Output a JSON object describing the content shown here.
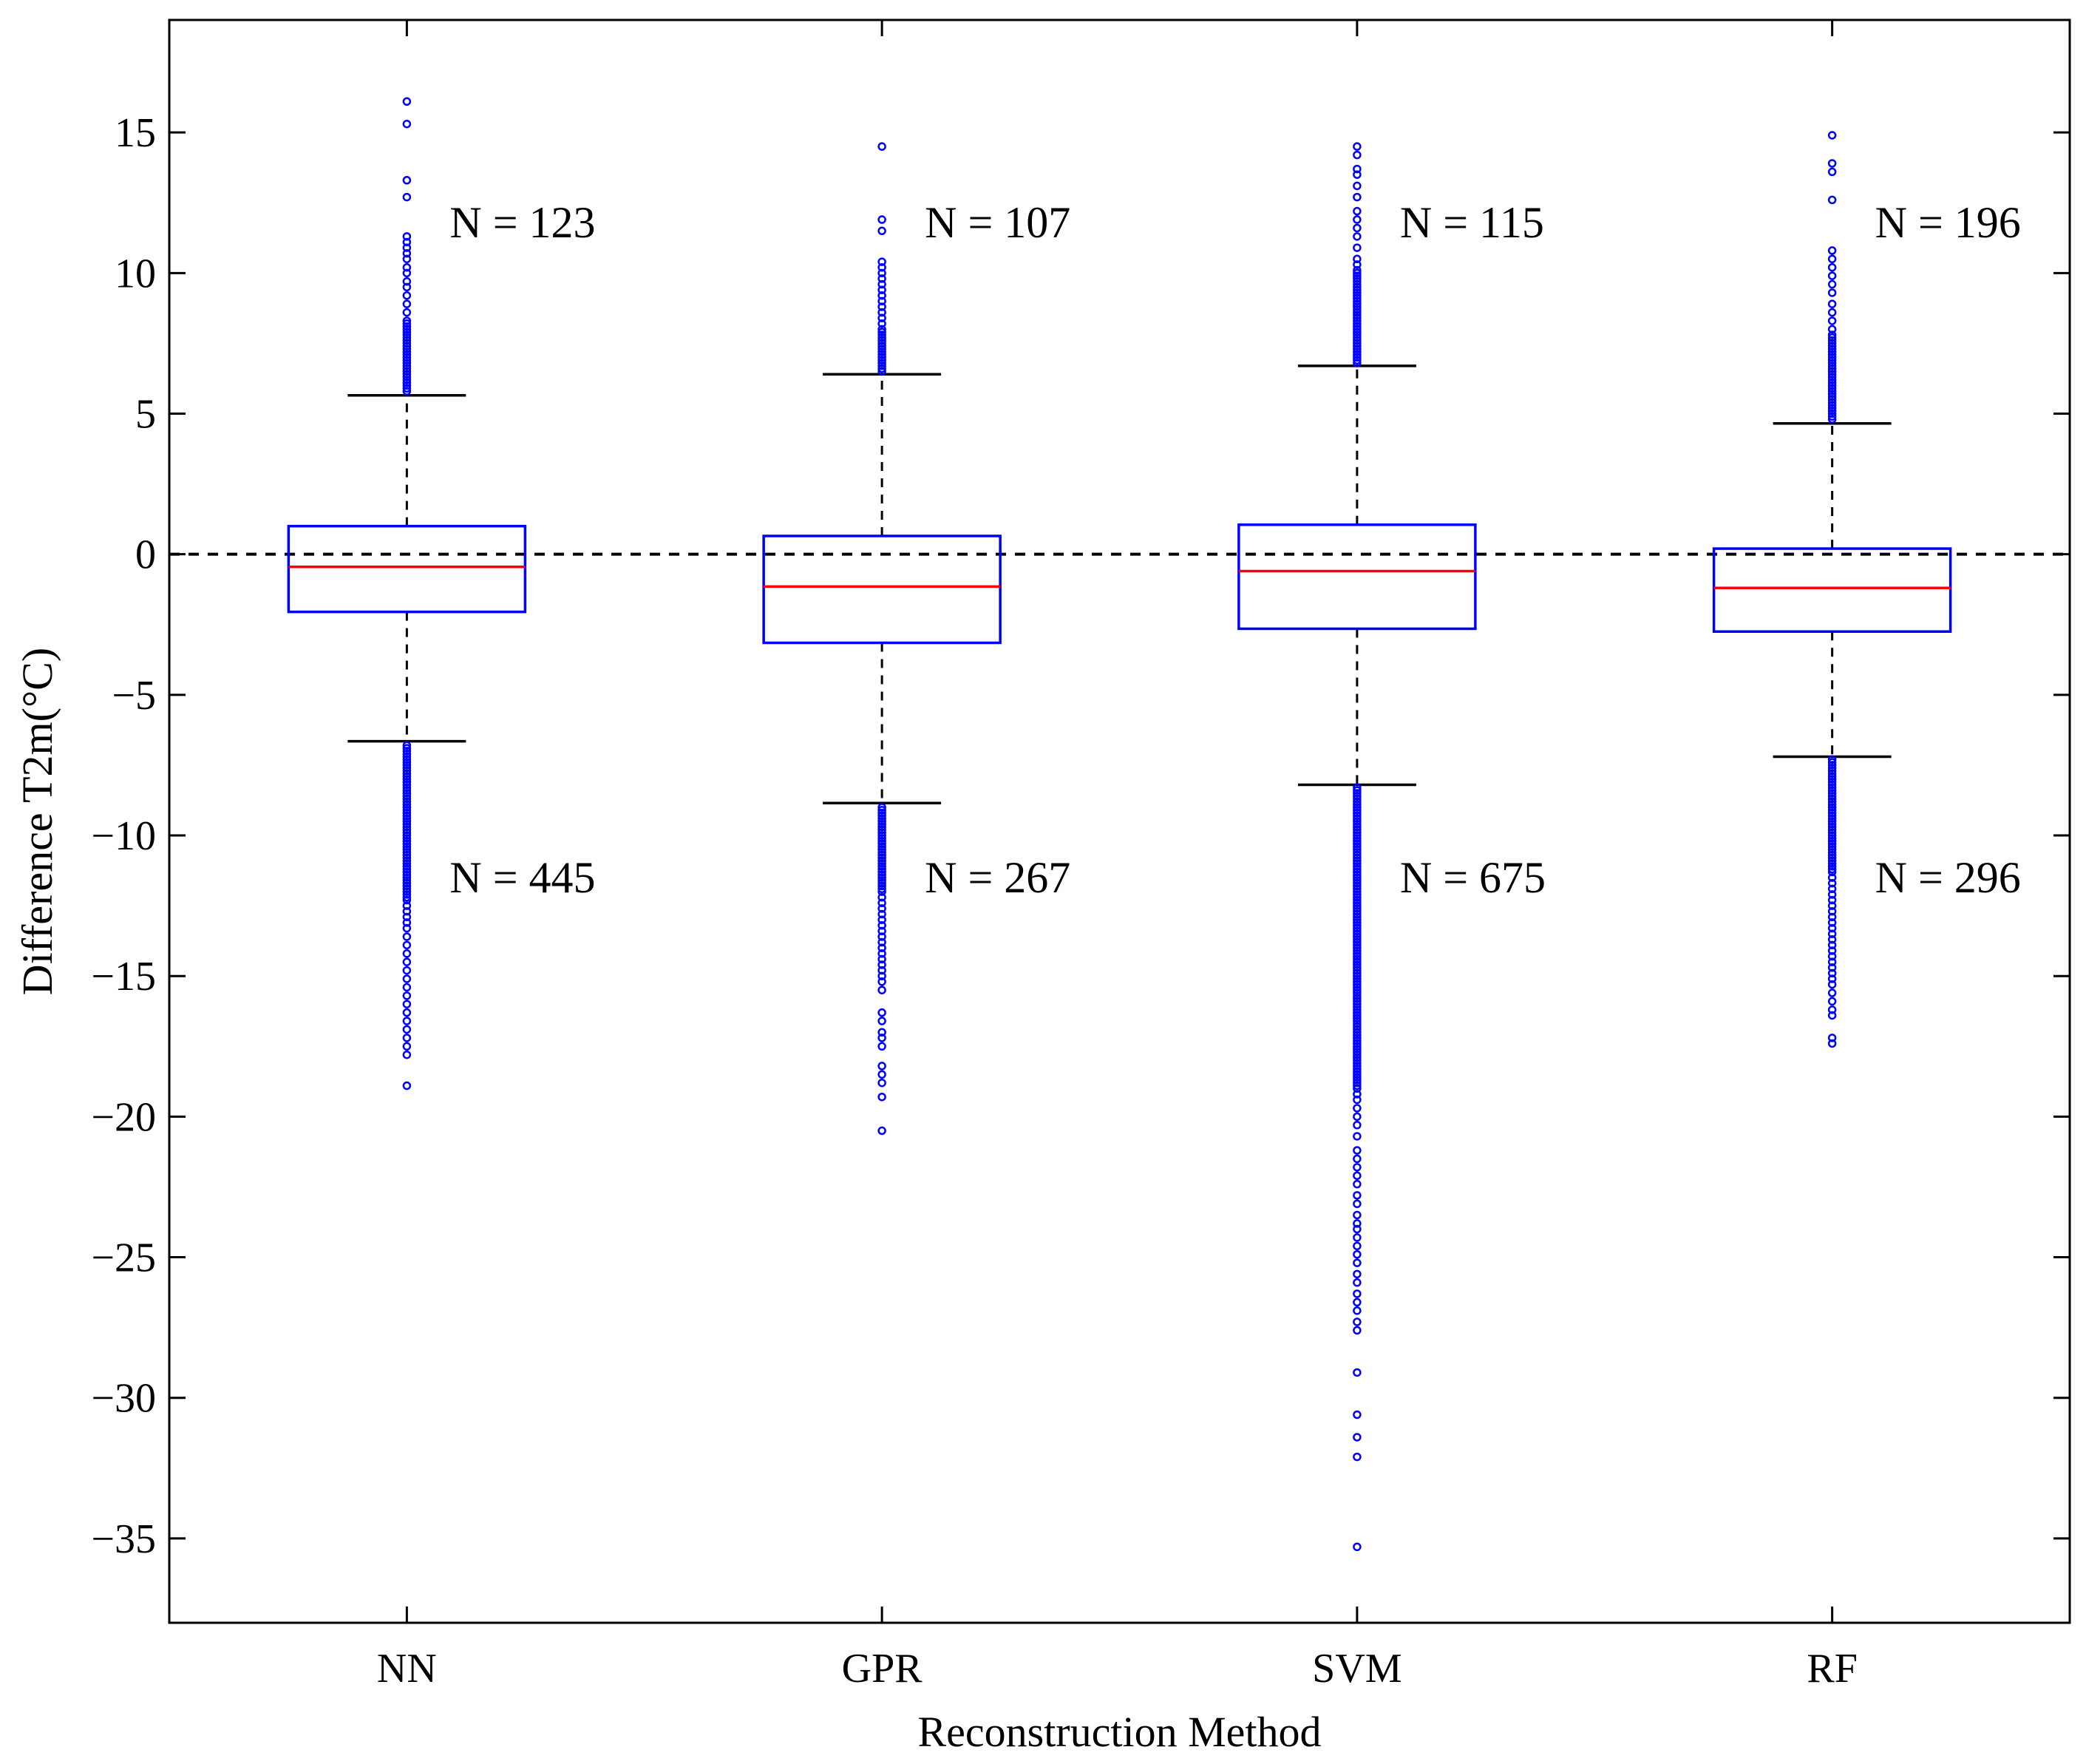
{
  "chart_data": {
    "type": "boxplot",
    "xlabel": "Reconstruction Method",
    "ylabel": "Difference T2m(°C)",
    "ylim": [
      -38,
      19
    ],
    "yticks": [
      15,
      10,
      5,
      0,
      -5,
      -10,
      -15,
      -20,
      -25,
      -30,
      -35
    ],
    "ytick_labels": [
      "15",
      "10",
      "5",
      "0",
      "−5",
      "−10",
      "−15",
      "−20",
      "−25",
      "−30",
      "−35"
    ],
    "reference_line": {
      "y": 0,
      "style": "dashed"
    },
    "colors": {
      "box": "#0000ff",
      "median": "#ff0000",
      "whisker": "#000000",
      "outlier": "#0000ff",
      "frame": "#000000"
    },
    "categories": [
      "NN",
      "GPR",
      "SVM",
      "RF"
    ],
    "boxes": [
      {
        "name": "NN",
        "q1": -2.05,
        "median": -0.45,
        "q3": 1.0,
        "whisker_low": -6.65,
        "whisker_high": 5.65,
        "outliers_high": [
          5.8,
          5.9,
          6.0,
          6.1,
          6.2,
          6.3,
          6.4,
          6.5,
          6.6,
          6.7,
          6.8,
          6.9,
          7.0,
          7.1,
          7.2,
          7.3,
          7.4,
          7.5,
          7.6,
          7.7,
          7.8,
          7.9,
          8.0,
          8.1,
          8.2,
          8.3,
          8.6,
          8.9,
          9.2,
          9.5,
          9.7,
          10.0,
          10.2,
          10.5,
          10.7,
          10.9,
          11.1,
          11.3,
          12.7,
          13.3,
          15.3,
          16.1
        ],
        "outliers_low": [
          -6.8,
          -6.9,
          -7.0,
          -7.1,
          -7.2,
          -7.3,
          -7.4,
          -7.5,
          -7.6,
          -7.7,
          -7.8,
          -7.9,
          -8.0,
          -8.1,
          -8.2,
          -8.3,
          -8.4,
          -8.5,
          -8.6,
          -8.7,
          -8.8,
          -8.9,
          -9.0,
          -9.1,
          -9.2,
          -9.3,
          -9.4,
          -9.5,
          -9.6,
          -9.7,
          -9.8,
          -9.9,
          -10.0,
          -10.1,
          -10.2,
          -10.3,
          -10.4,
          -10.5,
          -10.6,
          -10.7,
          -10.8,
          -10.9,
          -11.0,
          -11.1,
          -11.2,
          -11.3,
          -11.4,
          -11.5,
          -11.6,
          -11.7,
          -11.8,
          -11.9,
          -12.0,
          -12.1,
          -12.2,
          -12.3,
          -12.5,
          -12.7,
          -12.9,
          -13.1,
          -13.3,
          -13.6,
          -13.9,
          -14.2,
          -14.5,
          -14.8,
          -15.1,
          -15.4,
          -15.7,
          -16.0,
          -16.3,
          -16.6,
          -16.9,
          -17.2,
          -17.5,
          -17.8,
          -18.9
        ],
        "n_high": "N = 123",
        "n_low": "N = 445"
      },
      {
        "name": "GPR",
        "q1": -3.15,
        "median": -1.15,
        "q3": 0.65,
        "whisker_low": -8.85,
        "whisker_high": 6.4,
        "outliers_high": [
          6.5,
          6.6,
          6.7,
          6.8,
          6.9,
          7.0,
          7.1,
          7.2,
          7.3,
          7.4,
          7.5,
          7.6,
          7.7,
          7.8,
          7.9,
          8.0,
          8.2,
          8.4,
          8.6,
          8.8,
          9.0,
          9.2,
          9.4,
          9.6,
          9.8,
          10.0,
          10.2,
          10.4,
          11.5,
          11.9,
          14.5
        ],
        "outliers_low": [
          -9.0,
          -9.1,
          -9.2,
          -9.3,
          -9.4,
          -9.5,
          -9.6,
          -9.7,
          -9.8,
          -9.9,
          -10.0,
          -10.1,
          -10.2,
          -10.3,
          -10.4,
          -10.5,
          -10.6,
          -10.7,
          -10.8,
          -10.9,
          -11.0,
          -11.1,
          -11.2,
          -11.3,
          -11.4,
          -11.5,
          -11.6,
          -11.7,
          -11.8,
          -11.9,
          -12.0,
          -12.2,
          -12.4,
          -12.6,
          -12.8,
          -13.0,
          -13.2,
          -13.4,
          -13.6,
          -13.8,
          -14.0,
          -14.2,
          -14.4,
          -14.6,
          -14.8,
          -15.0,
          -15.2,
          -15.5,
          -16.3,
          -16.6,
          -17.0,
          -17.2,
          -17.5,
          -18.2,
          -18.5,
          -18.8,
          -19.3,
          -20.5
        ],
        "n_high": "N = 107",
        "n_low": "N = 267"
      },
      {
        "name": "SVM",
        "q1": -2.65,
        "median": -0.6,
        "q3": 1.05,
        "whisker_low": -8.2,
        "whisker_high": 6.7,
        "outliers_high": [
          6.8,
          6.9,
          7.0,
          7.1,
          7.2,
          7.3,
          7.4,
          7.5,
          7.6,
          7.7,
          7.8,
          7.9,
          8.0,
          8.1,
          8.2,
          8.3,
          8.4,
          8.5,
          8.6,
          8.7,
          8.8,
          8.9,
          9.0,
          9.1,
          9.2,
          9.3,
          9.4,
          9.5,
          9.6,
          9.7,
          9.8,
          9.9,
          10.0,
          10.1,
          10.3,
          10.5,
          10.9,
          11.3,
          11.6,
          11.9,
          12.2,
          12.7,
          13.1,
          13.5,
          13.7,
          14.2,
          14.5
        ],
        "outliers_low": [
          -8.3,
          -8.4,
          -8.5,
          -8.6,
          -8.7,
          -8.8,
          -8.9,
          -9.0,
          -9.1,
          -9.2,
          -9.3,
          -9.4,
          -9.5,
          -9.6,
          -9.7,
          -9.8,
          -9.9,
          -10.0,
          -10.1,
          -10.2,
          -10.3,
          -10.4,
          -10.5,
          -10.6,
          -10.7,
          -10.8,
          -10.9,
          -11.0,
          -11.1,
          -11.2,
          -11.3,
          -11.4,
          -11.5,
          -11.6,
          -11.7,
          -11.8,
          -11.9,
          -12.0,
          -12.1,
          -12.2,
          -12.3,
          -12.4,
          -12.5,
          -12.6,
          -12.7,
          -12.8,
          -12.9,
          -13.0,
          -13.1,
          -13.2,
          -13.3,
          -13.4,
          -13.5,
          -13.6,
          -13.7,
          -13.8,
          -13.9,
          -14.0,
          -14.1,
          -14.2,
          -14.3,
          -14.4,
          -14.5,
          -14.6,
          -14.7,
          -14.8,
          -14.9,
          -15.0,
          -15.1,
          -15.2,
          -15.3,
          -15.4,
          -15.5,
          -15.6,
          -15.7,
          -15.8,
          -15.9,
          -16.0,
          -16.1,
          -16.2,
          -16.3,
          -16.4,
          -16.5,
          -16.6,
          -16.7,
          -16.8,
          -16.9,
          -17.0,
          -17.1,
          -17.2,
          -17.3,
          -17.4,
          -17.5,
          -17.6,
          -17.7,
          -17.8,
          -17.9,
          -18.0,
          -18.1,
          -18.2,
          -18.3,
          -18.4,
          -18.5,
          -18.6,
          -18.7,
          -18.8,
          -18.9,
          -19.0,
          -19.2,
          -19.4,
          -19.7,
          -20.0,
          -20.3,
          -20.7,
          -21.2,
          -21.5,
          -21.8,
          -22.1,
          -22.4,
          -22.8,
          -23.1,
          -23.5,
          -23.8,
          -24.0,
          -24.3,
          -24.6,
          -24.9,
          -25.2,
          -25.6,
          -25.9,
          -26.3,
          -26.6,
          -26.9,
          -27.3,
          -27.6,
          -29.1,
          -30.6,
          -31.4,
          -32.1,
          -35.3
        ],
        "n_high": "N = 115",
        "n_low": "N = 675"
      },
      {
        "name": "RF",
        "q1": -2.75,
        "median": -1.2,
        "q3": 0.2,
        "whisker_low": -7.2,
        "whisker_high": 4.65,
        "outliers_high": [
          4.8,
          4.9,
          5.0,
          5.1,
          5.2,
          5.3,
          5.4,
          5.5,
          5.6,
          5.7,
          5.8,
          5.9,
          6.0,
          6.1,
          6.2,
          6.3,
          6.4,
          6.5,
          6.6,
          6.7,
          6.8,
          6.9,
          7.0,
          7.1,
          7.2,
          7.3,
          7.4,
          7.5,
          7.6,
          7.7,
          7.8,
          8.0,
          8.3,
          8.6,
          8.9,
          9.3,
          9.6,
          9.9,
          10.2,
          10.5,
          10.8,
          12.6,
          13.6,
          13.9,
          14.9
        ],
        "outliers_low": [
          -7.3,
          -7.4,
          -7.5,
          -7.6,
          -7.7,
          -7.8,
          -7.9,
          -8.0,
          -8.1,
          -8.2,
          -8.3,
          -8.4,
          -8.5,
          -8.6,
          -8.7,
          -8.8,
          -8.9,
          -9.0,
          -9.1,
          -9.2,
          -9.3,
          -9.4,
          -9.5,
          -9.6,
          -9.7,
          -9.8,
          -9.9,
          -10.0,
          -10.1,
          -10.2,
          -10.3,
          -10.4,
          -10.5,
          -10.6,
          -10.7,
          -10.8,
          -10.9,
          -11.0,
          -11.1,
          -11.2,
          -11.3,
          -11.5,
          -11.7,
          -11.9,
          -12.1,
          -12.3,
          -12.5,
          -12.7,
          -12.9,
          -13.1,
          -13.3,
          -13.5,
          -13.7,
          -13.9,
          -14.1,
          -14.3,
          -14.5,
          -14.7,
          -14.9,
          -15.1,
          -15.3,
          -15.6,
          -15.9,
          -16.2,
          -16.4,
          -17.2,
          -17.4
        ],
        "n_high": "N = 196",
        "n_low": "N = 296"
      }
    ]
  }
}
